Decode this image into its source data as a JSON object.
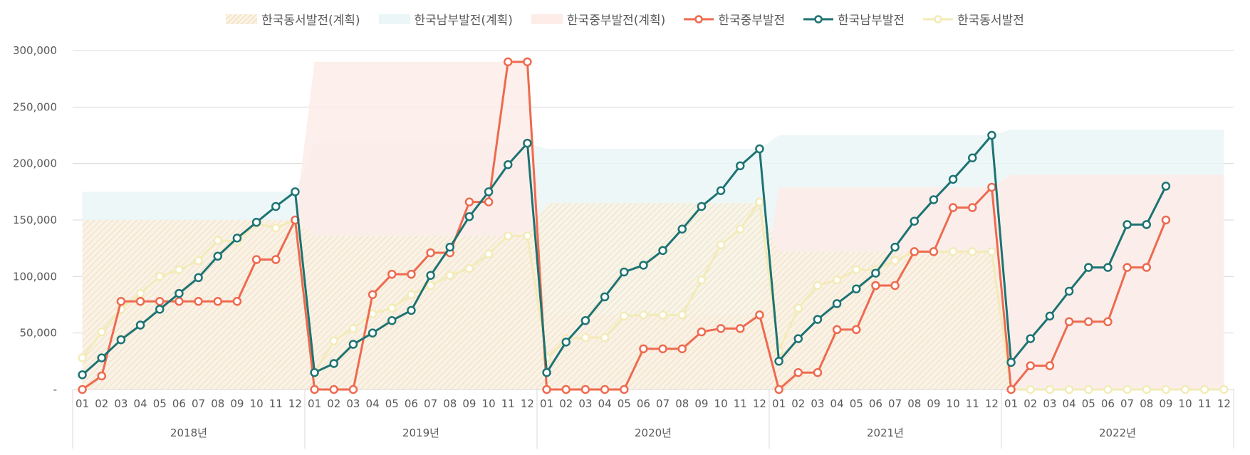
{
  "chart_data": {
    "type": "line",
    "legend_position": "top",
    "grid": true,
    "ylim": [
      0,
      300000
    ],
    "y_ticks": [
      "-",
      "50,000",
      "100,000",
      "150,000",
      "200,000",
      "250,000",
      "300,000"
    ],
    "month_labels": [
      "01",
      "02",
      "03",
      "04",
      "05",
      "06",
      "07",
      "08",
      "09",
      "10",
      "11",
      "12"
    ],
    "years": [
      "2018년",
      "2019년",
      "2020년",
      "2021년",
      "2022년"
    ],
    "plan_series": [
      {
        "name": "한국동서발전(계획)",
        "color": "#F5E6C8",
        "pattern": "hatch",
        "values": [
          150000,
          136000,
          165000,
          122000,
          0
        ]
      },
      {
        "name": "한국남부발전(계획)",
        "color": "#EAF6F7",
        "pattern": "solid",
        "values": [
          175000,
          218000,
          213000,
          225000,
          230000
        ]
      },
      {
        "name": "한국중부발전(계획)",
        "color": "#FDECE8",
        "pattern": "solid",
        "values": [
          150000,
          290000,
          66000,
          179000,
          190000
        ]
      }
    ],
    "line_series": [
      {
        "name": "한국중부발전",
        "color": "#EE6A4F",
        "values": [
          [
            0,
            12000,
            78000,
            78000,
            78000,
            78000,
            78000,
            78000,
            78000,
            115000,
            115000,
            150000
          ],
          [
            0,
            0,
            0,
            84000,
            102000,
            102000,
            121000,
            121000,
            166000,
            166000,
            290000,
            290000
          ],
          [
            0,
            0,
            0,
            0,
            0,
            36000,
            36000,
            36000,
            51000,
            54000,
            54000,
            66000
          ],
          [
            0,
            15000,
            15000,
            53000,
            53000,
            92000,
            92000,
            122000,
            122000,
            161000,
            161000,
            179000
          ],
          [
            0,
            21000,
            21000,
            60000,
            60000,
            60000,
            108000,
            108000,
            150000,
            null,
            null,
            null
          ]
        ]
      },
      {
        "name": "한국남부발전",
        "color": "#1D7373",
        "values": [
          [
            13000,
            28000,
            44000,
            57000,
            71000,
            85000,
            99000,
            118000,
            134000,
            148000,
            162000,
            175000
          ],
          [
            15000,
            23000,
            40000,
            50000,
            61000,
            70000,
            101000,
            126000,
            153000,
            175000,
            199000,
            218000
          ],
          [
            15000,
            42000,
            61000,
            82000,
            104000,
            110000,
            123000,
            142000,
            162000,
            176000,
            198000,
            213000
          ],
          [
            25000,
            45000,
            62000,
            76000,
            89000,
            103000,
            126000,
            149000,
            168000,
            186000,
            205000,
            225000
          ],
          [
            24000,
            45000,
            65000,
            87000,
            108000,
            108000,
            146000,
            146000,
            180000,
            null,
            null,
            null
          ]
        ]
      },
      {
        "name": "한국동서발전",
        "color": "#F3EBB8",
        "values": [
          [
            28000,
            51000,
            71000,
            85000,
            100000,
            106000,
            114000,
            132000,
            131000,
            147000,
            143000,
            150000
          ],
          [
            15000,
            43000,
            54000,
            67000,
            72000,
            84000,
            92000,
            101000,
            107000,
            120000,
            136000,
            136000
          ],
          [
            28000,
            45000,
            46000,
            46000,
            65000,
            66000,
            66000,
            66000,
            97000,
            128000,
            142000,
            166000
          ],
          [
            34000,
            72000,
            92000,
            97000,
            106000,
            106000,
            114000,
            122000,
            122000,
            122000,
            122000,
            122000
          ],
          [
            0,
            0,
            0,
            0,
            0,
            0,
            0,
            0,
            0,
            0,
            0,
            0
          ]
        ]
      }
    ]
  },
  "legend": [
    {
      "name": "한국동서발전(계획)",
      "kind": "area-hatch",
      "color": "#F5E6C8"
    },
    {
      "name": "한국남부발전(계획)",
      "kind": "area",
      "color": "#EAF6F7"
    },
    {
      "name": "한국중부발전(계획)",
      "kind": "area",
      "color": "#FDECE8"
    },
    {
      "name": "한국중부발전",
      "kind": "line",
      "color": "#EE6A4F"
    },
    {
      "name": "한국남부발전",
      "kind": "line",
      "color": "#1D7373"
    },
    {
      "name": "한국동서발전",
      "kind": "line",
      "color": "#F3EBB8"
    }
  ]
}
